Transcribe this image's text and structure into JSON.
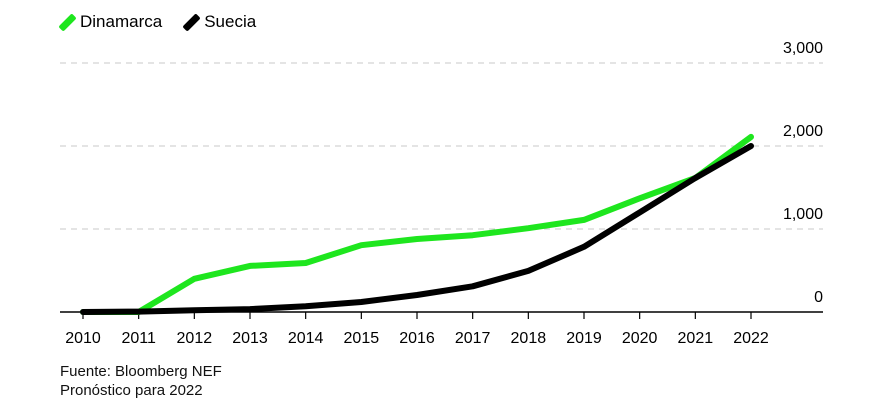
{
  "chart_data": {
    "type": "line",
    "title": "",
    "xlabel": "",
    "ylabel": "",
    "x": [
      2010,
      2011,
      2012,
      2013,
      2014,
      2015,
      2016,
      2017,
      2018,
      2019,
      2020,
      2021,
      2022
    ],
    "x_tick_labels": [
      "2010",
      "2011",
      "2012",
      "2013",
      "2014",
      "2015",
      "2016",
      "2017",
      "2018",
      "2019",
      "2020",
      "2021",
      "2022"
    ],
    "ylim": [
      0,
      3000
    ],
    "y_ticks": [
      0,
      1000,
      2000,
      3000
    ],
    "y_tick_labels": [
      "0",
      "1,000",
      "2,000",
      "3,000"
    ],
    "grid": true,
    "legend_position": "top-left",
    "series": [
      {
        "name": "Dinamarca",
        "color": "#1ee61e",
        "values": [
          0,
          0,
          400,
          555,
          590,
          805,
          880,
          925,
          1010,
          1110,
          1370,
          1615,
          2110
        ]
      },
      {
        "name": "Suecia",
        "color": "#000000",
        "values": [
          0,
          5,
          20,
          35,
          70,
          120,
          205,
          310,
          495,
          785,
          1200,
          1615,
          2000
        ]
      }
    ]
  },
  "footer": {
    "source": "Fuente: Bloomberg NEF",
    "note": "Pronóstico para 2022"
  }
}
